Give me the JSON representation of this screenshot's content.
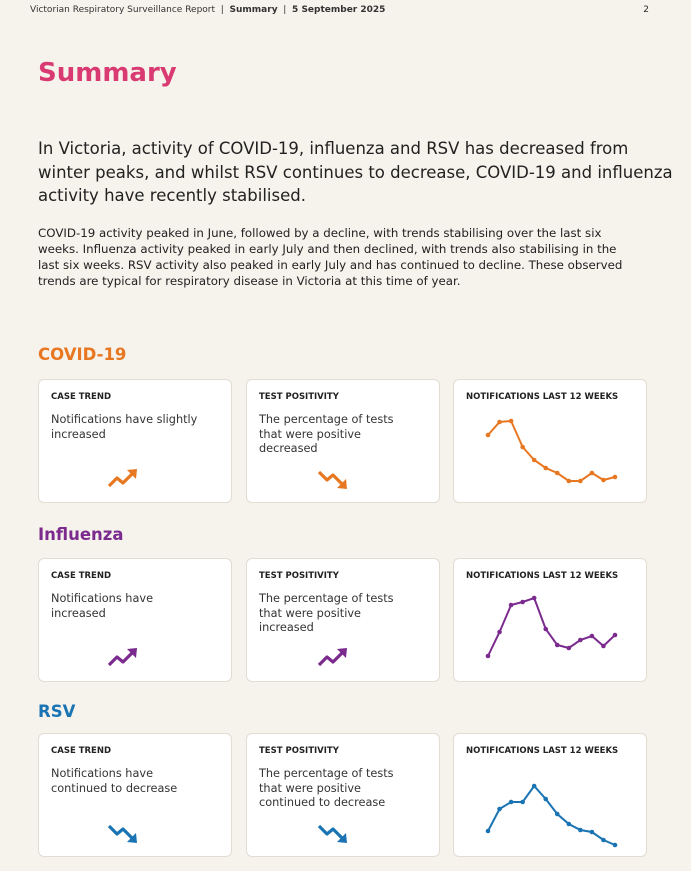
{
  "header": {
    "report": "Victorian Respiratory Surveillance Report",
    "section": "Summary",
    "date": "5 September 2025",
    "page": "2"
  },
  "title": "Summary",
  "lead": "In Victoria, activity of COVID-19, influenza and RSV has decreased from winter peaks, and whilst RSV continues to decrease, COVID-19 and influenza activity have recently stabilised.",
  "body": "COVID-19 activity peaked in June,  followed by a decline, with trends stabilising over the last six weeks. Influenza activity peaked in early July and then declined, with trends also stabilising in the last six weeks. RSV activity also peaked in early July and has continued to decline. These observed trends are typical for respiratory disease in Victoria at this time of year.",
  "sections": [
    {
      "name": "COVID-19",
      "color": "#e87722",
      "cards": [
        {
          "label": "CASE TREND",
          "text": "Notifications have slightly increased"
        },
        {
          "label": "TEST POSITIVITY",
          "text": "The percentage of tests that were positive decreased"
        },
        {
          "label": "NOTIFICATIONS LAST 12 WEEKS",
          "sparkline": {
            "type": "line",
            "ylim": [
              0,
              100
            ],
            "values": [
              65,
              78,
              79,
              53,
              40,
              32,
              27,
              19,
              19,
              27,
              20,
              23
            ]
          }
        }
      ]
    },
    {
      "name": "Influenza",
      "color": "#7b2a8e",
      "cards": [
        {
          "label": "CASE TREND",
          "text": "Notifications have increased"
        },
        {
          "label": "TEST POSITIVITY",
          "text": "The percentage of tests that were positive increased"
        },
        {
          "label": "NOTIFICATIONS LAST 12 WEEKS",
          "sparkline": {
            "type": "line",
            "ylim": [
              0,
              100
            ],
            "values": [
              23,
              47,
              74,
              77,
              81,
              50,
              34,
              31,
              39,
              43,
              33,
              44
            ]
          }
        }
      ]
    },
    {
      "name": "RSV",
      "color": "#1a74b3",
      "cards": [
        {
          "label": "CASE TREND",
          "text": "Notifications have continued to decrease"
        },
        {
          "label": "TEST POSITIVITY",
          "text": "The percentage of tests that were positive continued to decrease"
        },
        {
          "label": "NOTIFICATIONS LAST 12 WEEKS",
          "sparkline": {
            "type": "line",
            "ylim": [
              0,
              100
            ],
            "values": [
              23,
              45,
              52,
              52,
              68,
              55,
              40,
              30,
              24,
              22,
              14,
              9
            ]
          }
        }
      ]
    }
  ]
}
